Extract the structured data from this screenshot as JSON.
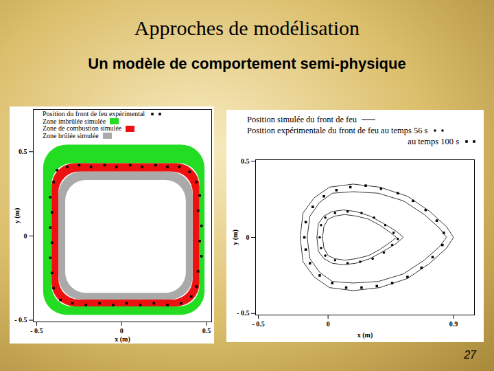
{
  "slide": {
    "title": "Approches de modélisation",
    "subtitle": "Un modèle de comportement semi-physique",
    "page": 27
  },
  "chart_data": [
    {
      "type": "scatter",
      "xlabel": "x (m)",
      "ylabel": "y (m)",
      "xlim": [
        -0.52,
        0.53
      ],
      "ylim": [
        -0.51,
        0.75
      ],
      "xticks": [
        {
          "value": -0.5,
          "label": "- 0.5"
        },
        0,
        0.5
      ],
      "yticks": [
        {
          "value": -0.5,
          "label": "- 0.5"
        },
        0,
        0.5
      ],
      "grid": false,
      "series": [
        {
          "name": "Position du front de feu expérimental",
          "marker": "square",
          "color": "#000000",
          "x": [
            -0.38,
            -0.32,
            -0.25,
            -0.18,
            -0.1,
            -0.03,
            0.05,
            0.12,
            0.2,
            0.27,
            0.34,
            0.4,
            0.44,
            0.46,
            0.45,
            0.47,
            0.46,
            0.47,
            0.45,
            0.44,
            0.41,
            0.35,
            0.27,
            0.19,
            0.11,
            0.03,
            -0.05,
            -0.13,
            -0.21,
            -0.29,
            -0.36,
            -0.4,
            -0.41,
            -0.42,
            -0.41,
            -0.42,
            -0.41,
            -0.42,
            -0.4
          ],
          "y": [
            0.39,
            0.41,
            0.42,
            0.41,
            0.42,
            0.41,
            0.42,
            0.41,
            0.42,
            0.41,
            0.41,
            0.38,
            0.32,
            0.24,
            0.15,
            0.06,
            -0.03,
            -0.12,
            -0.21,
            -0.3,
            -0.36,
            -0.4,
            -0.41,
            -0.4,
            -0.41,
            -0.4,
            -0.41,
            -0.4,
            -0.41,
            -0.4,
            -0.38,
            -0.31,
            -0.22,
            -0.13,
            -0.04,
            0.05,
            0.14,
            0.23,
            0.32
          ]
        }
      ],
      "zones": [
        {
          "name": "Zone imbrûlée simulée",
          "color": "#22dd22",
          "outer": {
            "x": [
              -0.46,
              0.49
            ],
            "y": [
              -0.47,
              0.54
            ]
          },
          "inner": {
            "x": [
              -0.41,
              0.46
            ],
            "y": [
              -0.42,
              0.43
            ]
          }
        },
        {
          "name": "Zone de combustion simulée",
          "color": "#ee1111",
          "outer": {
            "x": [
              -0.41,
              0.46
            ],
            "y": [
              -0.42,
              0.43
            ]
          },
          "inner": {
            "x": [
              -0.37,
              0.42
            ],
            "y": [
              -0.38,
              0.38
            ]
          }
        },
        {
          "name": "Zone brûlée simulée",
          "color": "#aaaaaa",
          "outer": {
            "x": [
              -0.37,
              0.42
            ],
            "y": [
              -0.38,
              0.38
            ]
          },
          "inner": {
            "x": [
              -0.33,
              0.38
            ],
            "y": [
              -0.34,
              0.33
            ]
          }
        }
      ]
    },
    {
      "type": "line",
      "xlabel": "x (m)",
      "ylabel": "y (m)",
      "xlim": [
        -0.52,
        1.05
      ],
      "ylim": [
        -0.51,
        0.51
      ],
      "xticks": [
        {
          "value": -0.5,
          "label": "- 0.5"
        },
        0,
        0.9
      ],
      "yticks": [
        {
          "value": -0.5,
          "label": "- 0.5"
        },
        0,
        0.5
      ],
      "grid": false,
      "series": [
        {
          "name": "Position simulée du front de feu",
          "color": "#000000",
          "line_style": "solid",
          "contours": [
            {
              "x": [
                -0.2,
                -0.18,
                -0.1,
                0.01,
                0.18,
                0.37,
                0.57,
                0.73,
                0.85,
                0.9,
                0.85,
                0.73,
                0.57,
                0.37,
                0.18,
                0.01,
                -0.1,
                -0.18,
                -0.2
              ],
              "y": [
                0,
                0.16,
                0.26,
                0.33,
                0.35,
                0.33,
                0.27,
                0.17,
                0.07,
                0,
                -0.07,
                -0.17,
                -0.27,
                -0.33,
                -0.35,
                -0.33,
                -0.26,
                -0.16,
                0
              ]
            },
            {
              "x": [
                -0.15,
                -0.13,
                -0.06,
                0.03,
                0.18,
                0.36,
                0.54,
                0.69,
                0.8,
                0.85,
                0.8,
                0.69,
                0.54,
                0.36,
                0.18,
                0.03,
                -0.06,
                -0.13,
                -0.15
              ],
              "y": [
                0,
                0.14,
                0.23,
                0.29,
                0.3,
                0.29,
                0.24,
                0.15,
                0.06,
                0,
                -0.06,
                -0.15,
                -0.24,
                -0.29,
                -0.3,
                -0.29,
                -0.23,
                -0.14,
                0
              ]
            },
            {
              "x": [
                -0.08,
                -0.07,
                -0.03,
                0.03,
                0.11,
                0.2,
                0.3,
                0.4,
                0.49,
                0.54,
                0.49,
                0.4,
                0.3,
                0.2,
                0.11,
                0.03,
                -0.03,
                -0.07,
                -0.08
              ],
              "y": [
                0,
                0.09,
                0.14,
                0.17,
                0.18,
                0.17,
                0.14,
                0.09,
                0.04,
                0,
                -0.04,
                -0.09,
                -0.14,
                -0.17,
                -0.18,
                -0.17,
                -0.14,
                -0.09,
                0
              ]
            },
            {
              "x": [
                -0.04,
                -0.03,
                0.0,
                0.05,
                0.12,
                0.2,
                0.29,
                0.37,
                0.45,
                0.49,
                0.45,
                0.37,
                0.29,
                0.2,
                0.12,
                0.05,
                0.0,
                -0.03,
                -0.04
              ],
              "y": [
                0,
                0.07,
                0.12,
                0.14,
                0.15,
                0.14,
                0.12,
                0.08,
                0.03,
                0,
                -0.03,
                -0.08,
                -0.12,
                -0.14,
                -0.15,
                -0.14,
                -0.12,
                -0.07,
                0
              ]
            }
          ]
        },
        {
          "name": "Position expérimentale du front de feu au temps 56 s",
          "type": "scatter",
          "marker": "circle",
          "color": "#000000",
          "x": [
            -0.06,
            -0.05,
            -0.02,
            0.05,
            0.14,
            0.24,
            0.33,
            0.41,
            0.47,
            0.5,
            0.46,
            0.4,
            0.32,
            0.23,
            0.14,
            0.05,
            -0.02,
            -0.05
          ],
          "y": [
            0,
            0.08,
            0.13,
            0.16,
            0.17,
            0.16,
            0.13,
            0.08,
            0.03,
            -0.01,
            -0.05,
            -0.1,
            -0.14,
            -0.16,
            -0.17,
            -0.15,
            -0.12,
            -0.07
          ]
        },
        {
          "name": "au temps 100 s",
          "type": "scatter",
          "marker": "square",
          "color": "#000000",
          "x": [
            -0.17,
            -0.16,
            -0.11,
            -0.03,
            0.06,
            0.16,
            0.27,
            0.38,
            0.5,
            0.61,
            0.7,
            0.78,
            0.83,
            0.82,
            0.75,
            0.67,
            0.57,
            0.46,
            0.35,
            0.24,
            0.13,
            0.03,
            -0.06,
            -0.13,
            -0.16
          ],
          "y": [
            0,
            0.1,
            0.2,
            0.27,
            0.31,
            0.33,
            0.34,
            0.32,
            0.29,
            0.24,
            0.18,
            0.11,
            0.03,
            -0.05,
            -0.13,
            -0.2,
            -0.26,
            -0.3,
            -0.32,
            -0.33,
            -0.33,
            -0.3,
            -0.25,
            -0.17,
            -0.08
          ]
        }
      ]
    }
  ]
}
